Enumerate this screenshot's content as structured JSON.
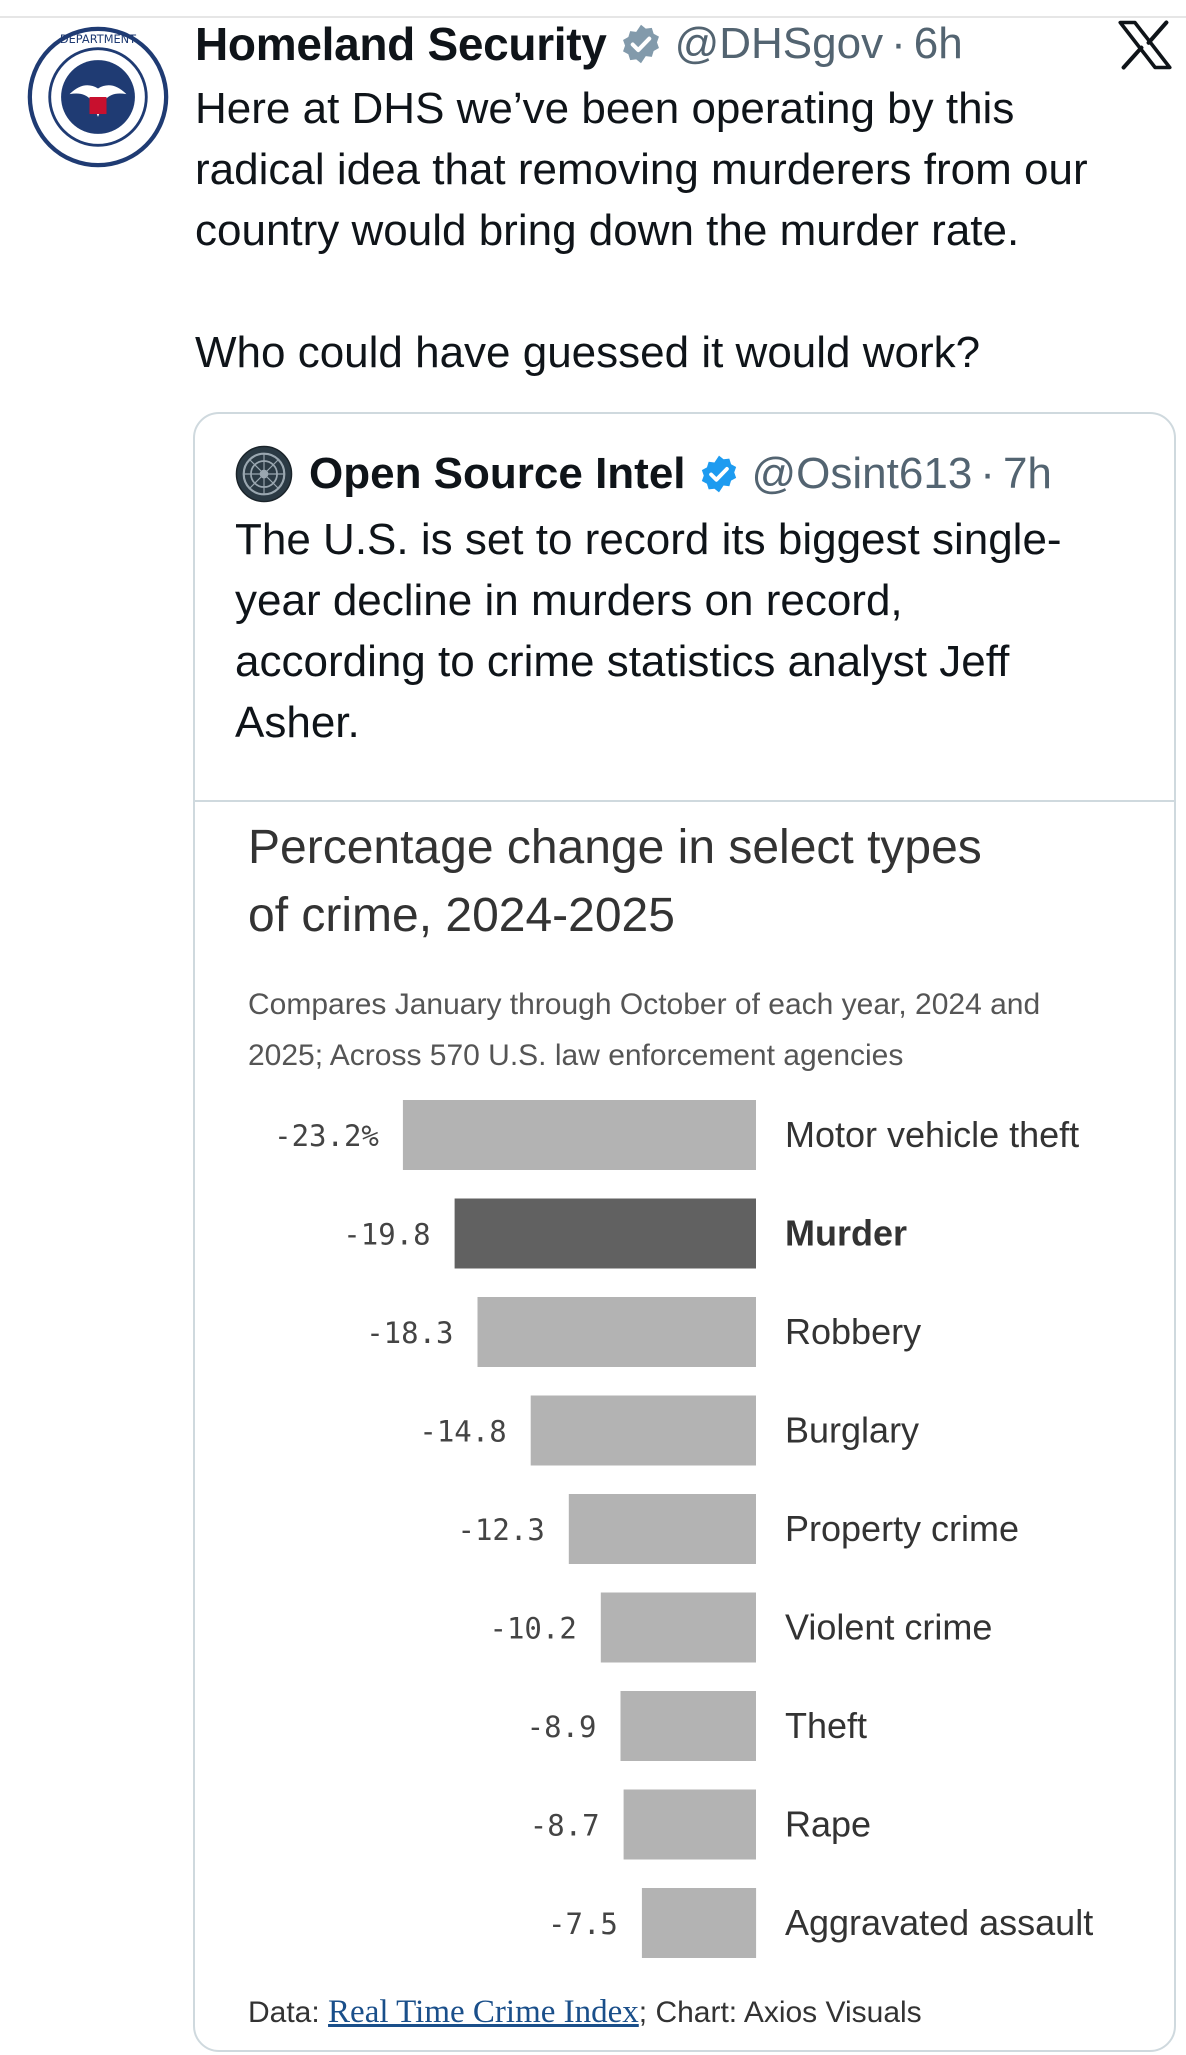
{
  "tweet": {
    "author": "Homeland Security",
    "handle": "@DHSgov",
    "time_sep": "·",
    "time": "6h",
    "text": "Here at DHS we’ve been operating by this\nradical idea that removing murderers from our\ncountry would bring down the murder rate.\n\nWho could have guessed it would work?"
  },
  "quote": {
    "author": "Open Source Intel",
    "handle": "@Osint613",
    "time_sep": "·",
    "time": "7h",
    "text": "The U.S. is set to record its biggest single-\nyear decline in murders on record,\naccording to crime statistics analyst Jeff\nAsher."
  },
  "colors": {
    "bar_default": "#b3b3b3",
    "bar_highlight": "#616161",
    "verified_badge": "#1d9bf0",
    "gray_badge": "#829aab"
  },
  "chart_data": {
    "type": "bar",
    "orientation": "horizontal",
    "title": "Percentage change in select types\nof crime, 2024-2025",
    "subtitle": "Compares January through October of each year, 2024 and\n2025; Across 570 U.S. law enforcement agencies",
    "categories": [
      "Motor vehicle theft",
      "Murder",
      "Robbery",
      "Burglary",
      "Property crime",
      "Violent crime",
      "Theft",
      "Rape",
      "Aggravated assault"
    ],
    "values": [
      -23.2,
      -19.8,
      -18.3,
      -14.8,
      -12.3,
      -10.2,
      -8.9,
      -8.7,
      -7.5
    ],
    "value_labels": [
      "-23.2%",
      "-19.8",
      "-18.3",
      "-14.8",
      "-12.3",
      "-10.2",
      "-8.9",
      "-8.7",
      "-7.5"
    ],
    "highlight": "Murder",
    "source_prefix": "Data: ",
    "source_link": "Real Time Crime Index",
    "source_suffix": "; Chart: Axios Visuals"
  }
}
